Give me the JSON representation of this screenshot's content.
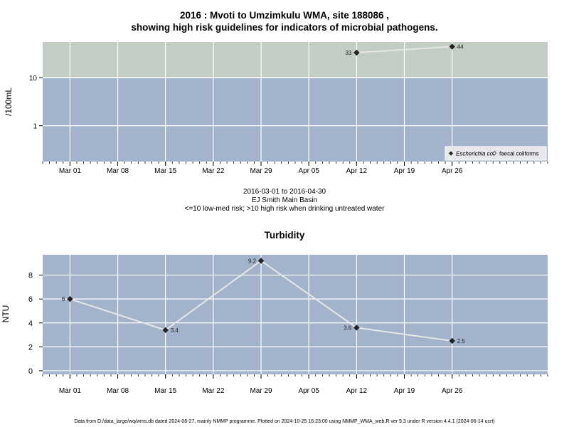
{
  "page": {
    "title_line1": "2016 : Mvoti to Umzimkulu WMA, site 188086 ,",
    "title_line2": "showing high risk guidelines for indicators of microbial pathogens.",
    "subtitle_line1": "2016-03-01 to 2016-04-30",
    "subtitle_line2": "EJ Smith Main Basin",
    "subtitle_line3": "<=10 low-med risk; >10 high risk when drinking untreated water",
    "footer": "Data from D:/data_large/wq/wms.db dated 2024-08-27, mainly NMMP programme. Plotted on 2024-10-25 16:23:00 using NMMP_WMA_web.R ver 9.3 under R version 4.4.1 (2024-06-14 ucrt)"
  },
  "colors": {
    "panel_blue": "#a2b3cb",
    "panel_green": "#c2cdc3",
    "series_line": "#e6e6e6",
    "point": "#222222"
  },
  "chart_data": [
    {
      "type": "line",
      "title": "",
      "ylabel": "/100mL",
      "yscale": "log",
      "ylim": [
        0.18,
        55
      ],
      "yticks": [
        1,
        10
      ],
      "ytick_labels": [
        "1",
        "10"
      ],
      "threshold": 10,
      "x_tick_dates": [
        "2016-03-01",
        "2016-03-08",
        "2016-03-15",
        "2016-03-22",
        "2016-03-29",
        "2016-04-05",
        "2016-04-12",
        "2016-04-19",
        "2016-04-26"
      ],
      "x_tick_labels": [
        "Mar 01",
        "Mar 08",
        "Mar 15",
        "Mar 22",
        "Mar 29",
        "Apr 05",
        "Apr 12",
        "Apr 19",
        "Apr 26"
      ],
      "series": [
        {
          "name": "Escherichia coli",
          "marker": "filled-diamond",
          "x": [
            "2016-04-12",
            "2016-04-26"
          ],
          "y": [
            33,
            44
          ],
          "labels": [
            "33",
            "44"
          ]
        }
      ],
      "legend": {
        "placement": "bottom-right",
        "entries": [
          {
            "label": "Escherichia coli",
            "marker": "filled-diamond",
            "italic": true
          },
          {
            "label": "faecal coliforms",
            "marker": "open-diamond",
            "italic": false
          }
        ]
      }
    },
    {
      "type": "line",
      "title": "Turbidity",
      "ylabel": "NTU",
      "yscale": "linear",
      "ylim": [
        -0.3,
        9.7
      ],
      "yticks": [
        0,
        2,
        4,
        6,
        8
      ],
      "ytick_labels": [
        "0",
        "2",
        "4",
        "6",
        "8"
      ],
      "x_tick_dates": [
        "2016-03-01",
        "2016-03-08",
        "2016-03-15",
        "2016-03-22",
        "2016-03-29",
        "2016-04-05",
        "2016-04-12",
        "2016-04-19",
        "2016-04-26"
      ],
      "x_tick_labels": [
        "Mar 01",
        "Mar 08",
        "Mar 15",
        "Mar 22",
        "Mar 29",
        "Apr 05",
        "Apr 12",
        "Apr 19",
        "Apr 26"
      ],
      "series": [
        {
          "name": "",
          "marker": "filled-diamond",
          "x": [
            "2016-03-01",
            "2016-03-15",
            "2016-03-29",
            "2016-04-12",
            "2016-04-26"
          ],
          "y": [
            6,
            3.4,
            9.2,
            3.6,
            2.5
          ],
          "labels": [
            "6",
            "3.4",
            "9.2",
            "3.6",
            "2.5"
          ]
        }
      ]
    }
  ]
}
